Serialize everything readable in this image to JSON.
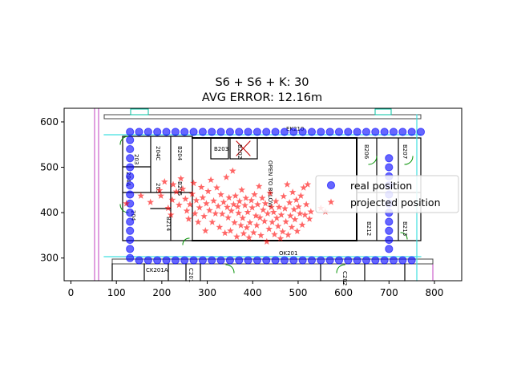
{
  "chart_data": {
    "type": "scatter",
    "title_lines": [
      "S6 + S6 + K: 30",
      "AVG ERROR: 12.16m"
    ],
    "xlabel": "",
    "ylabel": "",
    "xlim": [
      -15,
      860
    ],
    "ylim": [
      250,
      630
    ],
    "xticks": [
      0,
      100,
      200,
      300,
      400,
      500,
      600,
      700,
      800
    ],
    "yticks": [
      300,
      400,
      500,
      600
    ],
    "grid": false,
    "legend_position": "right",
    "background": "floor-plan",
    "series": [
      {
        "name": "real position",
        "marker": "circle",
        "color": "#0000ff",
        "points": [
          [
            130,
            578
          ],
          [
            150,
            578
          ],
          [
            170,
            578
          ],
          [
            190,
            578
          ],
          [
            210,
            578
          ],
          [
            230,
            578
          ],
          [
            250,
            578
          ],
          [
            270,
            578
          ],
          [
            290,
            578
          ],
          [
            310,
            578
          ],
          [
            330,
            578
          ],
          [
            350,
            578
          ],
          [
            370,
            578
          ],
          [
            390,
            578
          ],
          [
            410,
            578
          ],
          [
            430,
            578
          ],
          [
            450,
            578
          ],
          [
            470,
            578
          ],
          [
            490,
            578
          ],
          [
            510,
            578
          ],
          [
            530,
            578
          ],
          [
            550,
            578
          ],
          [
            570,
            578
          ],
          [
            590,
            578
          ],
          [
            610,
            578
          ],
          [
            630,
            578
          ],
          [
            650,
            578
          ],
          [
            670,
            578
          ],
          [
            690,
            578
          ],
          [
            710,
            578
          ],
          [
            730,
            578
          ],
          [
            750,
            578
          ],
          [
            770,
            578
          ],
          [
            130,
            560
          ],
          [
            130,
            540
          ],
          [
            130,
            520
          ],
          [
            130,
            500
          ],
          [
            130,
            480
          ],
          [
            130,
            460
          ],
          [
            130,
            440
          ],
          [
            130,
            420
          ],
          [
            130,
            400
          ],
          [
            130,
            380
          ],
          [
            130,
            360
          ],
          [
            130,
            340
          ],
          [
            130,
            320
          ],
          [
            130,
            300
          ],
          [
            150,
            295
          ],
          [
            170,
            295
          ],
          [
            190,
            295
          ],
          [
            210,
            295
          ],
          [
            230,
            295
          ],
          [
            250,
            295
          ],
          [
            270,
            295
          ],
          [
            290,
            295
          ],
          [
            310,
            295
          ],
          [
            330,
            295
          ],
          [
            350,
            295
          ],
          [
            370,
            295
          ],
          [
            390,
            295
          ],
          [
            410,
            295
          ],
          [
            430,
            295
          ],
          [
            450,
            295
          ],
          [
            470,
            295
          ],
          [
            490,
            295
          ],
          [
            510,
            295
          ],
          [
            530,
            295
          ],
          [
            550,
            295
          ],
          [
            570,
            295
          ],
          [
            590,
            295
          ],
          [
            610,
            295
          ],
          [
            630,
            295
          ],
          [
            650,
            295
          ],
          [
            670,
            295
          ],
          [
            690,
            295
          ],
          [
            710,
            295
          ],
          [
            730,
            295
          ],
          [
            750,
            295
          ],
          [
            700,
            520
          ],
          [
            700,
            500
          ],
          [
            700,
            480
          ],
          [
            700,
            460
          ],
          [
            700,
            440
          ],
          [
            700,
            420
          ],
          [
            700,
            400
          ],
          [
            700,
            380
          ],
          [
            700,
            360
          ],
          [
            700,
            340
          ],
          [
            700,
            320
          ]
        ]
      },
      {
        "name": "projected position",
        "marker": "star",
        "color": "#ff0000",
        "points": [
          [
            122,
            420
          ],
          [
            154,
            437
          ],
          [
            175,
            423
          ],
          [
            195,
            449
          ],
          [
            198,
            437
          ],
          [
            206,
            468
          ],
          [
            214,
            410
          ],
          [
            220,
            395
          ],
          [
            223,
            428
          ],
          [
            225,
            462
          ],
          [
            232,
            446
          ],
          [
            238,
            417
          ],
          [
            242,
            475
          ],
          [
            246,
            452
          ],
          [
            252,
            430
          ],
          [
            255,
            404
          ],
          [
            259,
            386
          ],
          [
            262,
            418
          ],
          [
            267,
            441
          ],
          [
            270,
            465
          ],
          [
            273,
            398
          ],
          [
            276,
            427
          ],
          [
            280,
            379
          ],
          [
            283,
            411
          ],
          [
            287,
            456
          ],
          [
            290,
            433
          ],
          [
            293,
            392
          ],
          [
            296,
            360
          ],
          [
            298,
            420
          ],
          [
            302,
            447
          ],
          [
            305,
            405
          ],
          [
            308,
            472
          ],
          [
            311,
            379
          ],
          [
            314,
            426
          ],
          [
            318,
            398
          ],
          [
            321,
            455
          ],
          [
            324,
            414
          ],
          [
            327,
            368
          ],
          [
            330,
            440
          ],
          [
            333,
            397
          ],
          [
            336,
            423
          ],
          [
            339,
            355
          ],
          [
            342,
            478
          ],
          [
            344,
            412
          ],
          [
            346,
            389
          ],
          [
            348,
            433
          ],
          [
            351,
            360
          ],
          [
            353,
            404
          ],
          [
            356,
            492
          ],
          [
            358,
            418
          ],
          [
            360,
            378
          ],
          [
            362,
            437
          ],
          [
            365,
            347
          ],
          [
            367,
            413
          ],
          [
            369,
            399
          ],
          [
            371,
            425
          ],
          [
            374,
            372
          ],
          [
            376,
            450
          ],
          [
            378,
            388
          ],
          [
            380,
            354
          ],
          [
            383,
            416
          ],
          [
            385,
            432
          ],
          [
            387,
            367
          ],
          [
            389,
            401
          ],
          [
            392,
            345
          ],
          [
            394,
            378
          ],
          [
            397,
            427
          ],
          [
            399,
            411
          ],
          [
            402,
            356
          ],
          [
            404,
            440
          ],
          [
            407,
            393
          ],
          [
            409,
            372
          ],
          [
            411,
            418
          ],
          [
            414,
            458
          ],
          [
            416,
            389
          ],
          [
            418,
            350
          ],
          [
            421,
            432
          ],
          [
            423,
            406
          ],
          [
            426,
            381
          ],
          [
            428,
            420
          ],
          [
            431,
            336
          ],
          [
            433,
            398
          ],
          [
            436,
            364
          ],
          [
            438,
            443
          ],
          [
            441,
            412
          ],
          [
            443,
            379
          ],
          [
            446,
            401
          ],
          [
            448,
            352
          ],
          [
            451,
            425
          ],
          [
            453,
            388
          ],
          [
            456,
            370
          ],
          [
            458,
            412
          ],
          [
            461,
            343
          ],
          [
            463,
            395
          ],
          [
            466,
            358
          ],
          [
            468,
            436
          ],
          [
            471,
            409
          ],
          [
            473,
            380
          ],
          [
            476,
            462
          ],
          [
            478,
            351
          ],
          [
            481,
            422
          ],
          [
            483,
            393
          ],
          [
            486,
            368
          ],
          [
            488,
            445
          ],
          [
            491,
            407
          ],
          [
            493,
            385
          ],
          [
            496,
            428
          ],
          [
            498,
            359
          ],
          [
            501,
            413
          ],
          [
            504,
            398
          ],
          [
            506,
            437
          ],
          [
            509,
            373
          ],
          [
            512,
            455
          ],
          [
            515,
            395
          ],
          [
            518,
            418
          ],
          [
            521,
            462
          ],
          [
            525,
            386
          ],
          [
            528,
            402
          ],
          [
            550,
            410
          ],
          [
            560,
            402
          ]
        ]
      }
    ],
    "plan_labels": [
      "203",
      "204",
      "204A",
      "204C",
      "205",
      "B204",
      "B205",
      "B214",
      "B206",
      "B207",
      "B212",
      "B213",
      "OPEN TO BELOW",
      "OK201",
      "EK210",
      "B203",
      "B202",
      "C201",
      "C202",
      "CK201A"
    ]
  }
}
